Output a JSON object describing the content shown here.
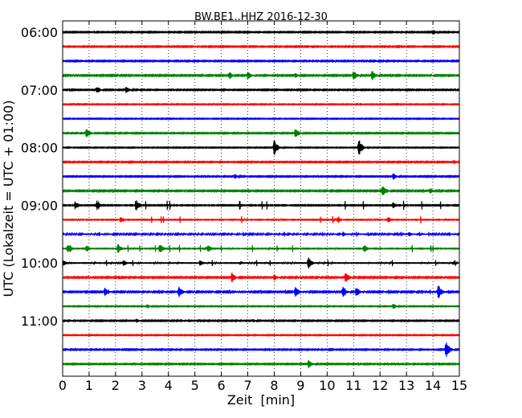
{
  "chart_data": {
    "type": "line",
    "title": "BW.BE1..HHZ 2016-12-30",
    "xlabel": "Zeit  [min]",
    "ylabel": "UTC (Lokalzeit = UTC + 01:00)",
    "xlim": [
      0,
      15
    ],
    "x_ticks": [
      "0",
      "1",
      "2",
      "3",
      "4",
      "5",
      "6",
      "7",
      "8",
      "9",
      "10",
      "11",
      "12",
      "13",
      "14",
      "15"
    ],
    "y_ticks": [
      "06:00",
      "07:00",
      "08:00",
      "09:00",
      "10:00",
      "11:00"
    ],
    "grid": "vertical dotted",
    "series_colors": [
      "#000000",
      "#ff0000",
      "#0000ff",
      "#008000"
    ],
    "traces": [
      {
        "start": "06:00",
        "color": "#000000",
        "amplitude": 0.05,
        "events": [
          {
            "t": 14.0,
            "a": 0.35
          }
        ]
      },
      {
        "start": "06:15",
        "color": "#ff0000",
        "amplitude": 0.05,
        "events": []
      },
      {
        "start": "06:30",
        "color": "#0000ff",
        "amplitude": 0.05,
        "events": [
          {
            "t": 10.2,
            "a": 0.2
          },
          {
            "t": 13.5,
            "a": 0.15
          }
        ]
      },
      {
        "start": "06:45",
        "color": "#008000",
        "amplitude": 0.06,
        "events": [
          {
            "t": 6.3,
            "a": 0.5
          },
          {
            "t": 7.0,
            "a": 0.5
          },
          {
            "t": 8.8,
            "a": 0.3
          },
          {
            "t": 11.0,
            "a": 0.6
          },
          {
            "t": 11.7,
            "a": 0.6
          }
        ]
      },
      {
        "start": "07:00",
        "color": "#000000",
        "amplitude": 0.05,
        "events": [
          {
            "t": 1.3,
            "a": 0.45
          },
          {
            "t": 2.4,
            "a": 0.45
          }
        ]
      },
      {
        "start": "07:15",
        "color": "#ff0000",
        "amplitude": 0.04,
        "events": []
      },
      {
        "start": "07:30",
        "color": "#0000ff",
        "amplitude": 0.04,
        "events": []
      },
      {
        "start": "07:45",
        "color": "#008000",
        "amplitude": 0.05,
        "events": [
          {
            "t": 0.9,
            "a": 0.7
          },
          {
            "t": 8.8,
            "a": 0.7
          }
        ]
      },
      {
        "start": "08:00",
        "color": "#000000",
        "amplitude": 0.04,
        "events": [
          {
            "t": 8.0,
            "a": 1.0
          },
          {
            "t": 11.2,
            "a": 1.0
          }
        ]
      },
      {
        "start": "08:15",
        "color": "#ff0000",
        "amplitude": 0.05,
        "events": [
          {
            "t": 14.8,
            "a": 0.3
          }
        ]
      },
      {
        "start": "08:30",
        "color": "#0000ff",
        "amplitude": 0.05,
        "events": [
          {
            "t": 6.5,
            "a": 0.35
          },
          {
            "t": 12.5,
            "a": 0.4
          }
        ]
      },
      {
        "start": "08:45",
        "color": "#008000",
        "amplitude": 0.06,
        "events": [
          {
            "t": 12.1,
            "a": 0.65
          },
          {
            "t": 13.9,
            "a": 0.35
          }
        ]
      },
      {
        "start": "09:00",
        "color": "#000000",
        "amplitude": 0.15,
        "events": [
          {
            "t": 0.5,
            "a": 0.45
          },
          {
            "t": 1.3,
            "a": 0.6
          },
          {
            "t": 2.8,
            "a": 0.65
          },
          {
            "t": 12.5,
            "a": 0.5
          }
        ]
      },
      {
        "start": "09:15",
        "color": "#ff0000",
        "amplitude": 0.12,
        "events": [
          {
            "t": 2.2,
            "a": 0.4
          },
          {
            "t": 10.4,
            "a": 0.4
          },
          {
            "t": 12.3,
            "a": 0.4
          }
        ]
      },
      {
        "start": "09:30",
        "color": "#0000ff",
        "amplitude": 0.08,
        "events": [
          {
            "t": 10.6,
            "a": 0.3
          },
          {
            "t": 13.1,
            "a": 0.3
          }
        ]
      },
      {
        "start": "09:45",
        "color": "#008000",
        "amplitude": 0.12,
        "events": [
          {
            "t": 0.2,
            "a": 0.6
          },
          {
            "t": 0.9,
            "a": 0.4
          },
          {
            "t": 2.1,
            "a": 0.6
          },
          {
            "t": 3.7,
            "a": 0.5
          },
          {
            "t": 5.5,
            "a": 0.5
          },
          {
            "t": 11.4,
            "a": 0.5
          }
        ]
      },
      {
        "start": "10:00",
        "color": "#000000",
        "amplitude": 0.1,
        "events": [
          {
            "t": 0.0,
            "a": 0.5
          },
          {
            "t": 2.3,
            "a": 0.4
          },
          {
            "t": 5.2,
            "a": 0.4
          },
          {
            "t": 9.3,
            "a": 0.7
          }
        ]
      },
      {
        "start": "10:15",
        "color": "#ff0000",
        "amplitude": 0.06,
        "events": [
          {
            "t": 6.4,
            "a": 0.6
          },
          {
            "t": 8.0,
            "a": 0.4
          },
          {
            "t": 10.7,
            "a": 0.7
          }
        ]
      },
      {
        "start": "10:30",
        "color": "#0000ff",
        "amplitude": 0.07,
        "events": [
          {
            "t": 1.6,
            "a": 0.5
          },
          {
            "t": 4.4,
            "a": 0.7
          },
          {
            "t": 8.8,
            "a": 0.7
          },
          {
            "t": 10.6,
            "a": 0.7
          },
          {
            "t": 11.1,
            "a": 0.6
          },
          {
            "t": 14.2,
            "a": 0.9
          }
        ]
      },
      {
        "start": "10:45",
        "color": "#008000",
        "amplitude": 0.04,
        "events": [
          {
            "t": 3.2,
            "a": 0.25
          },
          {
            "t": 12.5,
            "a": 0.35
          }
        ]
      },
      {
        "start": "11:00",
        "color": "#000000",
        "amplitude": 0.05,
        "events": [
          {
            "t": 2.8,
            "a": 0.25
          },
          {
            "t": 7.2,
            "a": 0.25
          }
        ]
      },
      {
        "start": "11:15",
        "color": "#ff0000",
        "amplitude": 0.04,
        "events": []
      },
      {
        "start": "11:30",
        "color": "#0000ff",
        "amplitude": 0.05,
        "events": [
          {
            "t": 14.5,
            "a": 1.0
          }
        ]
      },
      {
        "start": "11:45",
        "color": "#008000",
        "amplitude": 0.05,
        "events": [
          {
            "t": 9.3,
            "a": 0.55
          }
        ]
      }
    ]
  }
}
